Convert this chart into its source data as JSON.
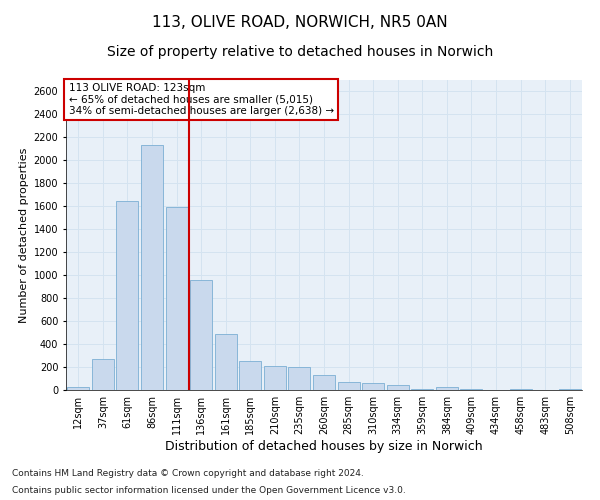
{
  "title_line1": "113, OLIVE ROAD, NORWICH, NR5 0AN",
  "title_line2": "Size of property relative to detached houses in Norwich",
  "xlabel": "Distribution of detached houses by size in Norwich",
  "ylabel": "Number of detached properties",
  "categories": [
    "12sqm",
    "37sqm",
    "61sqm",
    "86sqm",
    "111sqm",
    "136sqm",
    "161sqm",
    "185sqm",
    "210sqm",
    "235sqm",
    "260sqm",
    "285sqm",
    "310sqm",
    "334sqm",
    "359sqm",
    "384sqm",
    "409sqm",
    "434sqm",
    "458sqm",
    "483sqm",
    "508sqm"
  ],
  "values": [
    30,
    270,
    1650,
    2130,
    1590,
    960,
    490,
    250,
    210,
    200,
    130,
    70,
    60,
    40,
    10,
    30,
    10,
    0,
    10,
    0,
    10
  ],
  "bar_color": "#c9d9ed",
  "bar_edge_color": "#7bafd4",
  "grid_color": "#d4e3f0",
  "background_color": "#e8f0f8",
  "annotation_box_text": "113 OLIVE ROAD: 123sqm\n← 65% of detached houses are smaller (5,015)\n34% of semi-detached houses are larger (2,638) →",
  "annotation_box_color": "#ffffff",
  "annotation_box_edge_color": "#cc0000",
  "vline_color": "#cc0000",
  "ylim": [
    0,
    2700
  ],
  "yticks": [
    0,
    200,
    400,
    600,
    800,
    1000,
    1200,
    1400,
    1600,
    1800,
    2000,
    2200,
    2400,
    2600
  ],
  "footnote_line1": "Contains HM Land Registry data © Crown copyright and database right 2024.",
  "footnote_line2": "Contains public sector information licensed under the Open Government Licence v3.0.",
  "title_fontsize": 11,
  "subtitle_fontsize": 10,
  "xlabel_fontsize": 9,
  "ylabel_fontsize": 8,
  "tick_fontsize": 7,
  "annotation_fontsize": 7.5,
  "footnote_fontsize": 6.5
}
